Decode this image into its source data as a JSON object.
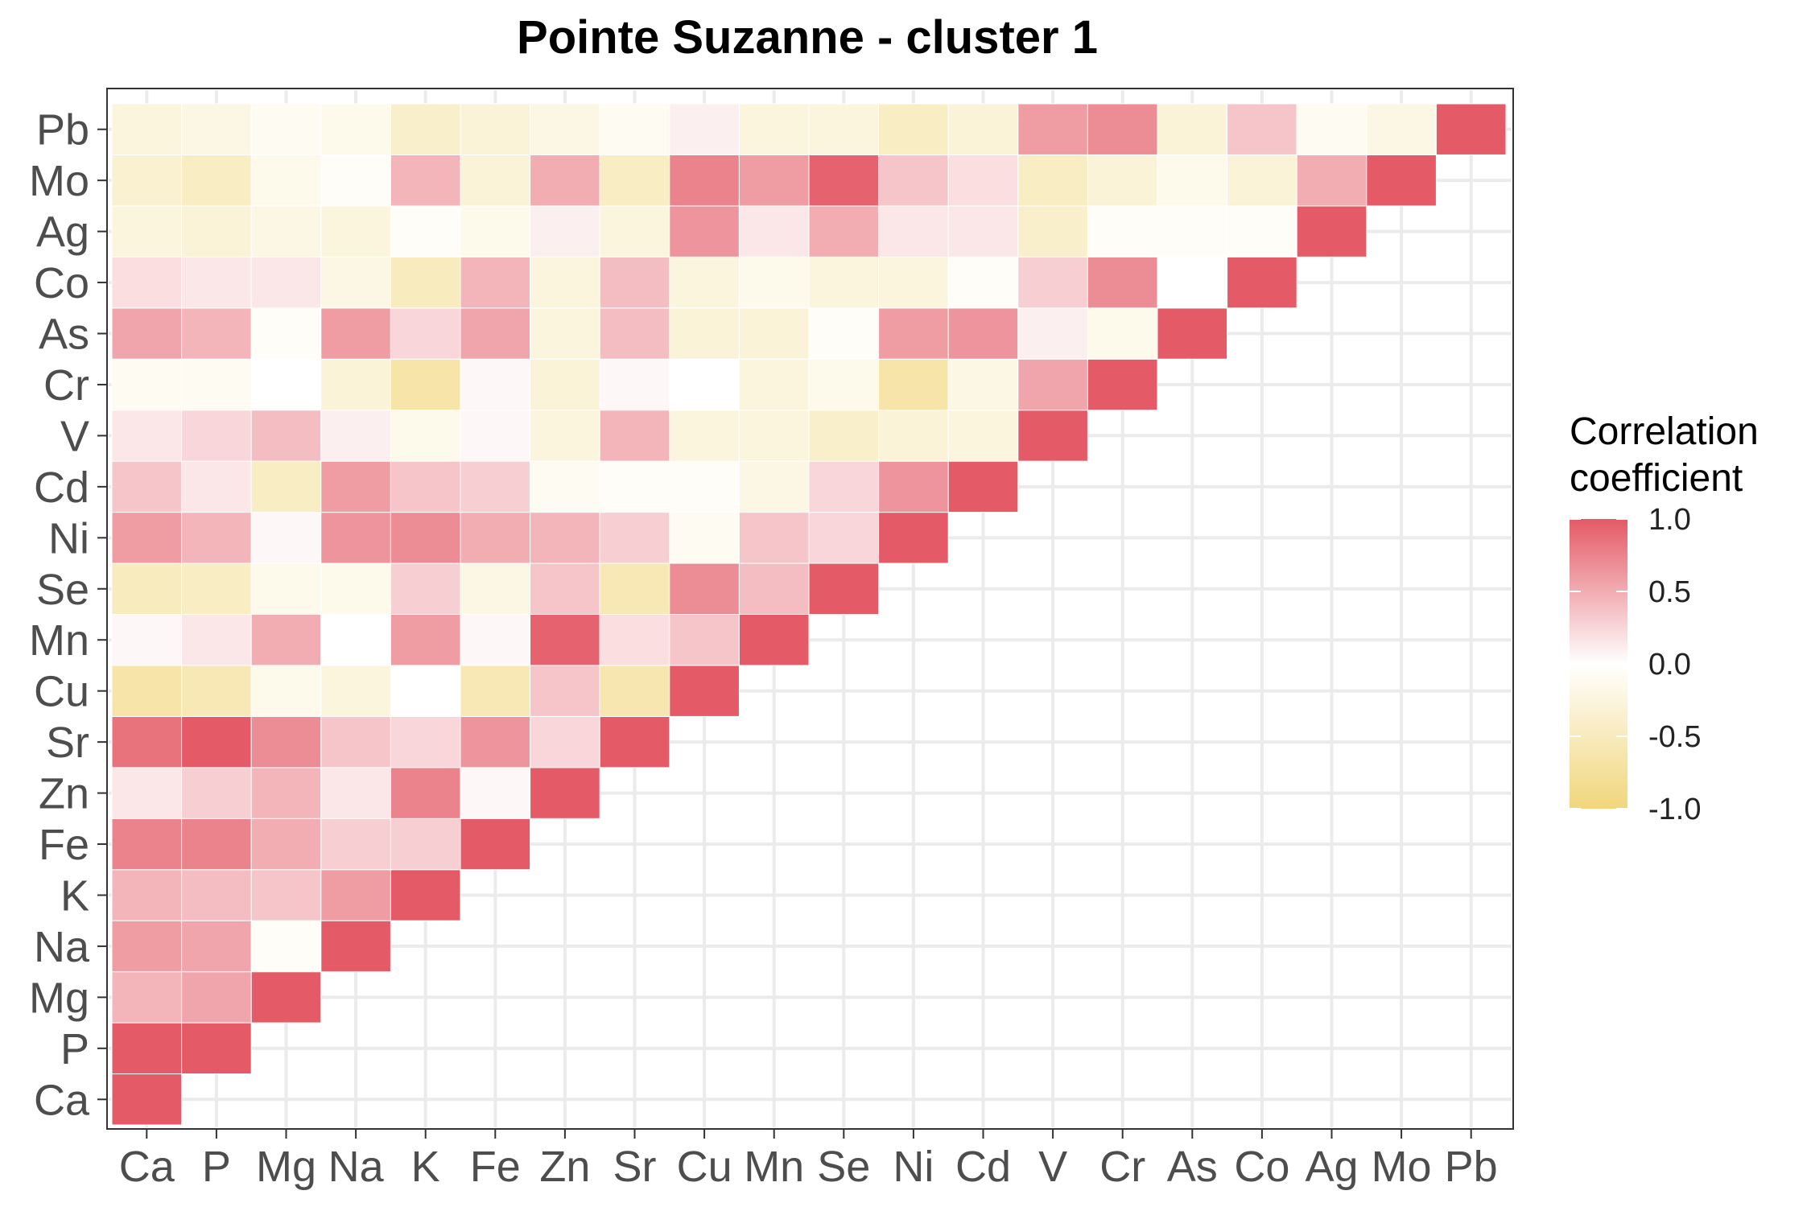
{
  "chart_data": {
    "type": "heatmap",
    "title": "Pointe Suzanne - cluster 1",
    "variables": [
      "Ca",
      "P",
      "Mg",
      "Na",
      "K",
      "Fe",
      "Zn",
      "Sr",
      "Cu",
      "Mn",
      "Se",
      "Ni",
      "Cd",
      "V",
      "Cr",
      "As",
      "Co",
      "Ag",
      "Mo",
      "Pb"
    ],
    "matrix_note": "lower triangle; rows are y-axis variables (bottom to top), columns are x-axis variables (left to right); values at index j <= i",
    "values": [
      [
        1.0
      ],
      [
        1.0,
        1.0
      ],
      [
        0.45,
        0.55,
        1.0
      ],
      [
        0.6,
        0.55,
        -0.05,
        1.0
      ],
      [
        0.45,
        0.4,
        0.35,
        0.6,
        1.0
      ],
      [
        0.75,
        0.75,
        0.5,
        0.3,
        0.3,
        1.0
      ],
      [
        0.15,
        0.3,
        0.45,
        0.15,
        0.75,
        0.05,
        1.0
      ],
      [
        0.85,
        1.0,
        0.7,
        0.35,
        0.25,
        0.65,
        0.25,
        1.0
      ],
      [
        -0.65,
        -0.55,
        -0.15,
        -0.25,
        0.0,
        -0.55,
        0.35,
        -0.6,
        1.0
      ],
      [
        0.05,
        0.15,
        0.5,
        0.0,
        0.6,
        0.05,
        0.95,
        0.2,
        0.35,
        1.0
      ],
      [
        -0.5,
        -0.45,
        -0.15,
        -0.15,
        0.3,
        -0.2,
        0.35,
        -0.55,
        0.7,
        0.4,
        1.0
      ],
      [
        0.6,
        0.45,
        0.05,
        0.65,
        0.7,
        0.5,
        0.45,
        0.3,
        -0.1,
        0.35,
        0.25,
        1.0
      ],
      [
        0.35,
        0.15,
        -0.45,
        0.6,
        0.35,
        0.3,
        -0.1,
        -0.05,
        -0.05,
        -0.2,
        0.25,
        0.65,
        1.0
      ],
      [
        0.15,
        0.25,
        0.4,
        0.1,
        -0.15,
        0.05,
        -0.25,
        0.45,
        -0.25,
        -0.25,
        -0.4,
        -0.3,
        -0.25,
        1.0
      ],
      [
        -0.1,
        -0.1,
        0.0,
        -0.3,
        -0.65,
        0.05,
        -0.3,
        0.05,
        0.0,
        -0.25,
        -0.15,
        -0.65,
        -0.2,
        0.55,
        1.0
      ],
      [
        0.55,
        0.45,
        -0.05,
        0.6,
        0.25,
        0.55,
        -0.25,
        0.4,
        -0.3,
        -0.3,
        -0.05,
        0.6,
        0.65,
        0.1,
        -0.15,
        1.0
      ],
      [
        0.2,
        0.15,
        0.15,
        -0.2,
        -0.5,
        0.45,
        -0.25,
        0.4,
        -0.25,
        -0.15,
        -0.25,
        -0.25,
        -0.05,
        0.3,
        0.7,
        0.0,
        1.0
      ],
      [
        -0.25,
        -0.3,
        -0.2,
        -0.25,
        -0.05,
        -0.15,
        0.1,
        -0.25,
        0.65,
        0.15,
        0.5,
        0.15,
        0.15,
        -0.4,
        -0.05,
        -0.05,
        -0.05,
        1.0
      ],
      [
        -0.35,
        -0.45,
        -0.15,
        -0.05,
        0.45,
        -0.3,
        0.5,
        -0.45,
        0.75,
        0.6,
        0.95,
        0.35,
        0.2,
        -0.45,
        -0.3,
        -0.15,
        -0.3,
        0.5,
        1.0
      ],
      [
        -0.25,
        -0.2,
        -0.1,
        -0.15,
        -0.4,
        -0.3,
        -0.2,
        -0.1,
        0.1,
        -0.25,
        -0.25,
        -0.45,
        -0.3,
        0.6,
        0.7,
        -0.3,
        0.35,
        -0.1,
        -0.2,
        1.0
      ]
    ],
    "colorscale": {
      "low": "#F1D67B",
      "mid": "#FFFFFF",
      "high": "#E45A66",
      "min": -1.0,
      "max": 1.0
    },
    "legend": {
      "title_line1": "Correlation",
      "title_line2": "coefficient",
      "ticks": [
        "1.0",
        "0.5",
        "0.0",
        "-0.5",
        "-1.0"
      ],
      "tick_values": [
        1.0,
        0.5,
        0.0,
        -0.5,
        -1.0
      ],
      "placement": "right"
    },
    "grid": true
  }
}
